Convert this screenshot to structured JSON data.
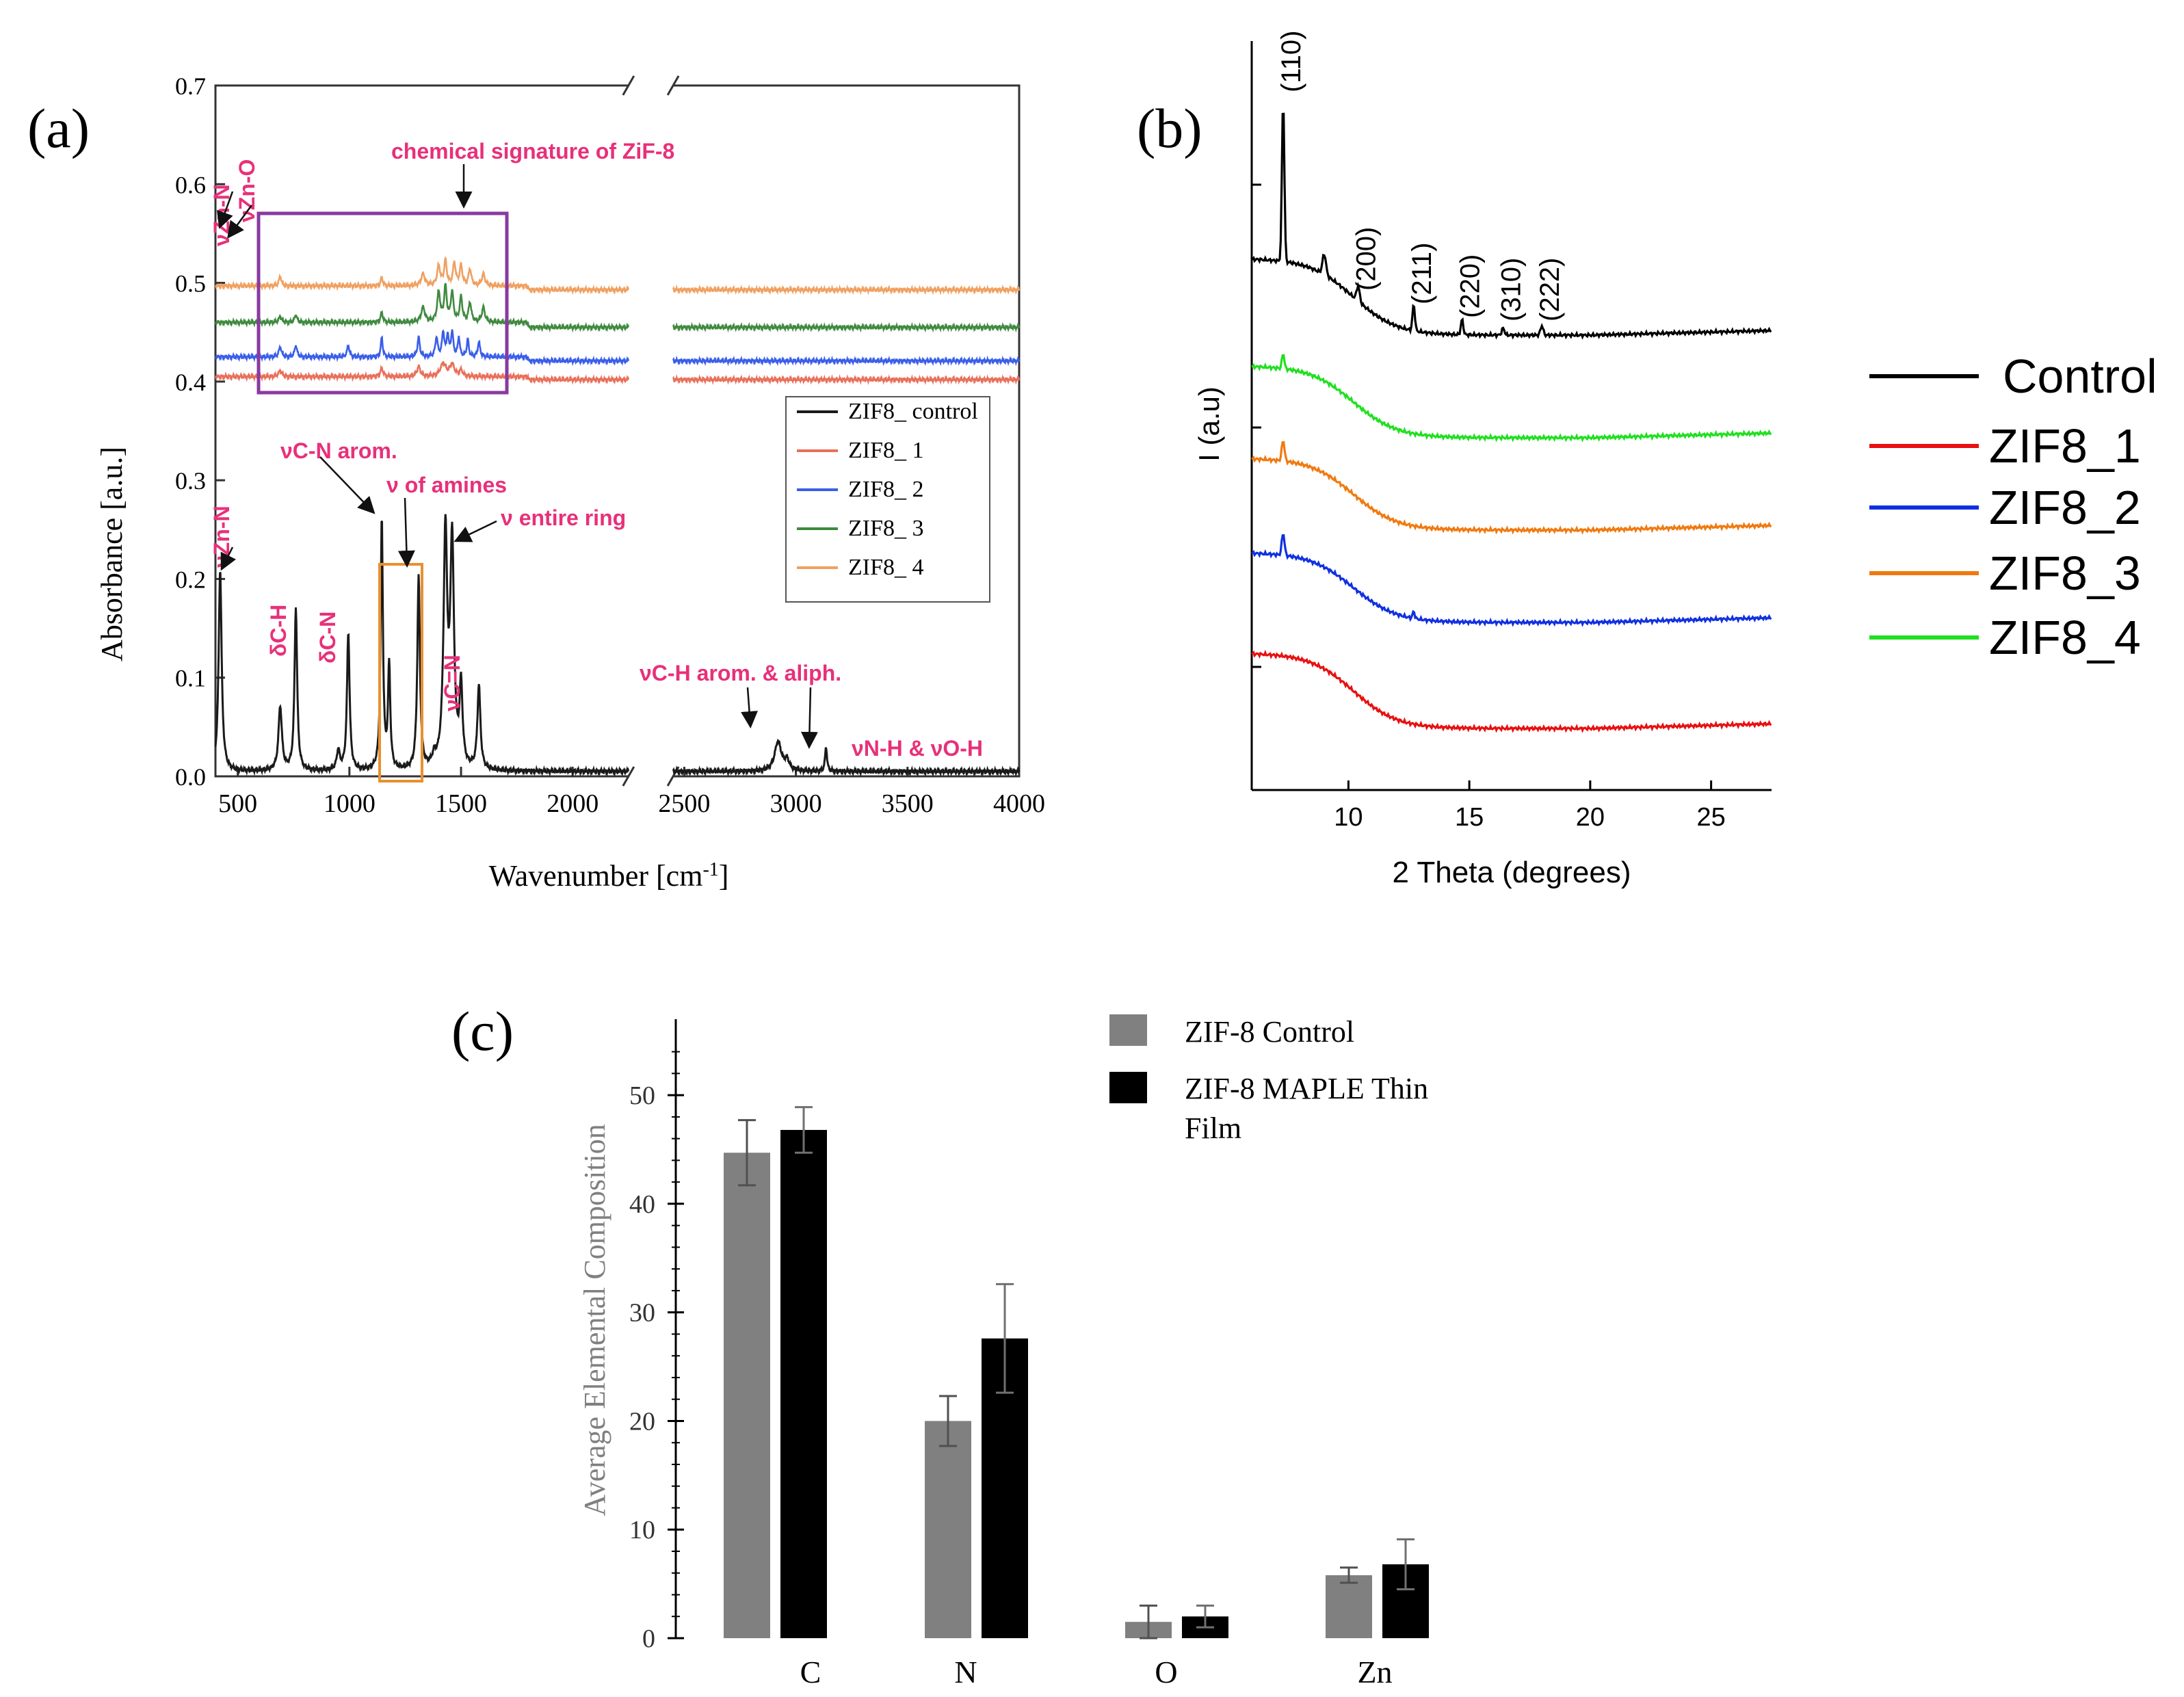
{
  "colors": {
    "black": "#1a1a1a",
    "ftir_red": "#e8705a",
    "ftir_blue": "#3a5ee8",
    "ftir_green": "#3f8a3f",
    "ftir_orange": "#f0a060",
    "annotation_pink": "#e8307a",
    "purple_box": "#8a3aa0",
    "orange_box": "#e89030",
    "xrd_black": "#000000",
    "xrd_red": "#e81010",
    "xrd_blue": "#1030e0",
    "xrd_orange": "#f07a10",
    "xrd_green": "#20e020",
    "bar_grey": "#808080",
    "bar_black": "#000000"
  },
  "panel_a": {
    "label": "(a)",
    "chart_data": {
      "type": "line",
      "title": "",
      "xlabel": "Wavenumber [cm",
      "xlabel_sup": "-1",
      "xlabel_end": "]",
      "ylabel": "Absorbance [a.u.]",
      "xlim": [
        400,
        4000
      ],
      "axis_break": [
        2250,
        2450
      ],
      "ylim": [
        0,
        0.7
      ],
      "x_ticks": [
        "500",
        "1000",
        "1500",
        "2000",
        "2500",
        "3000",
        "3500",
        "4000"
      ],
      "x_tick_values": [
        500,
        1000,
        1500,
        2000,
        2500,
        3000,
        3500,
        4000
      ],
      "y_ticks": [
        "0.0",
        "0.1",
        "0.2",
        "0.3",
        "0.4",
        "0.5",
        "0.6",
        "0.7"
      ],
      "y_tick_values": [
        0,
        0.1,
        0.2,
        0.3,
        0.4,
        0.5,
        0.6,
        0.7
      ],
      "legend_placement": "center-right",
      "series": [
        {
          "name": "ZIF8_ control",
          "color_key": "ftir_black",
          "baseline": 0.005,
          "peaks": [
            [
              421,
              0.205,
              8
            ],
            [
              690,
              0.065,
              9
            ],
            [
              760,
              0.165,
              7
            ],
            [
              950,
              0.02,
              8
            ],
            [
              995,
              0.14,
              7
            ],
            [
              1145,
              0.255,
              6
            ],
            [
              1178,
              0.105,
              6
            ],
            [
              1310,
              0.195,
              7
            ],
            [
              1380,
              0.01,
              10
            ],
            [
              1430,
              0.235,
              10
            ],
            [
              1460,
              0.225,
              10
            ],
            [
              1500,
              0.08,
              8
            ],
            [
              1580,
              0.085,
              8
            ],
            [
              2920,
              0.03,
              18
            ],
            [
              2960,
              0.01,
              12
            ],
            [
              3135,
              0.025,
              5
            ]
          ]
        },
        {
          "name": "ZIF8_ 1",
          "baseline": 0.405,
          "tail": 0.402,
          "peaks": [
            [
              690,
              0.006,
              9
            ],
            [
              1145,
              0.008,
              8
            ],
            [
              1310,
              0.01,
              9
            ],
            [
              1420,
              0.013,
              15
            ],
            [
              1460,
              0.012,
              12
            ],
            [
              1500,
              0.006,
              9
            ]
          ]
        },
        {
          "name": "ZIF8_ 2",
          "baseline": 0.425,
          "tail": 0.421,
          "peaks": [
            [
              690,
              0.01,
              7
            ],
            [
              760,
              0.012,
              6
            ],
            [
              995,
              0.012,
              6
            ],
            [
              1145,
              0.02,
              5
            ],
            [
              1310,
              0.02,
              6
            ],
            [
              1390,
              0.02,
              6
            ],
            [
              1420,
              0.025,
              6
            ],
            [
              1440,
              0.022,
              5
            ],
            [
              1460,
              0.025,
              6
            ],
            [
              1490,
              0.02,
              5
            ],
            [
              1530,
              0.018,
              5
            ],
            [
              1580,
              0.015,
              6
            ]
          ]
        },
        {
          "name": "ZIF8_ 3",
          "baseline": 0.46,
          "tail": 0.455,
          "peaks": [
            [
              690,
              0.006,
              7
            ],
            [
              760,
              0.008,
              6
            ],
            [
              1145,
              0.01,
              6
            ],
            [
              1330,
              0.015,
              10
            ],
            [
              1400,
              0.03,
              8
            ],
            [
              1430,
              0.035,
              7
            ],
            [
              1460,
              0.03,
              7
            ],
            [
              1500,
              0.025,
              7
            ],
            [
              1540,
              0.02,
              7
            ],
            [
              1600,
              0.015,
              8
            ]
          ]
        },
        {
          "name": "ZIF8_ 4",
          "baseline": 0.497,
          "tail": 0.493,
          "peaks": [
            [
              690,
              0.01,
              6
            ],
            [
              1145,
              0.008,
              6
            ],
            [
              1330,
              0.012,
              10
            ],
            [
              1400,
              0.02,
              8
            ],
            [
              1430,
              0.025,
              7
            ],
            [
              1470,
              0.023,
              7
            ],
            [
              1500,
              0.02,
              7
            ],
            [
              1540,
              0.017,
              7
            ],
            [
              1600,
              0.012,
              8
            ]
          ]
        }
      ]
    },
    "legend_items": [
      "ZIF8_ control",
      "ZIF8_ 1",
      "ZIF8_ 2",
      "ZIF8_ 3",
      "ZIF8_ 4"
    ],
    "annotations": {
      "zn_n_top": "νZn-N",
      "zn_o": "νZn-O",
      "chem_sig": "chemical signature of ZiF-8",
      "zn_n_low": "νZn-N",
      "dch": "δC-H",
      "dcn": "δC-N",
      "vcn_arom": "νC-N arom.",
      "v_amines": "ν of amines",
      "v_ring": "ν entire ring",
      "vc_n": "νC=N",
      "vch": "νC-H arom. & aliph.",
      "vnh": "νN-H & νO-H"
    }
  },
  "panel_b": {
    "label": "(b)",
    "chart_data": {
      "type": "line",
      "title": "",
      "xlabel": "2 Theta (degrees)",
      "ylabel": "I (a.u)",
      "xlim": [
        6,
        27.5
      ],
      "x_ticks": [
        "10",
        "15",
        "20",
        "25"
      ],
      "x_tick_values": [
        10,
        15,
        20,
        25
      ],
      "legend_placement": "right",
      "series": [
        {
          "name": "Control",
          "offset": 0.0
        },
        {
          "name": "ZIF8_4",
          "offset": 1.0
        },
        {
          "name": "ZIF8_3",
          "offset": 2.0
        },
        {
          "name": "ZIF8_2",
          "offset": 3.0
        },
        {
          "name": "ZIF8_1",
          "offset": 4.0
        }
      ],
      "peak_labels": [
        {
          "label": "(110)",
          "x": 7.3
        },
        {
          "label": "(200)",
          "x": 10.4
        },
        {
          "label": "(211)",
          "x": 12.7
        },
        {
          "label": "(220)",
          "x": 14.7
        },
        {
          "label": "(310)",
          "x": 16.4
        },
        {
          "label": "(222)",
          "x": 18.0
        }
      ]
    },
    "legend_items": [
      "Control",
      "ZIF8_1",
      "ZIF8_2",
      "ZIF8_3",
      "ZIF8_4"
    ]
  },
  "panel_c": {
    "label": "(c)",
    "chart_data": {
      "type": "bar",
      "title": "",
      "xlabel": "",
      "ylabel": "Average Elemental Composition",
      "categories": [
        "C",
        "N",
        "O",
        "Zn"
      ],
      "ylim": [
        0,
        57
      ],
      "y_ticks": [
        "0",
        "10",
        "20",
        "30",
        "40",
        "50"
      ],
      "y_tick_values": [
        0,
        10,
        20,
        30,
        40,
        50
      ],
      "legend_placement": "top-right",
      "series": [
        {
          "name": "ZIF-8 Control",
          "values": [
            44.7,
            20.0,
            1.5,
            5.8
          ],
          "errors": [
            3.0,
            2.3,
            1.5,
            0.7
          ]
        },
        {
          "name": "ZIF-8 MAPLE Thin Film",
          "values": [
            46.8,
            27.6,
            2.0,
            6.8
          ],
          "errors": [
            2.1,
            5.0,
            1.0,
            2.3
          ]
        }
      ]
    },
    "legend_items": [
      "ZIF-8 Control",
      "ZIF-8 MAPLE Thin",
      "Film"
    ]
  }
}
